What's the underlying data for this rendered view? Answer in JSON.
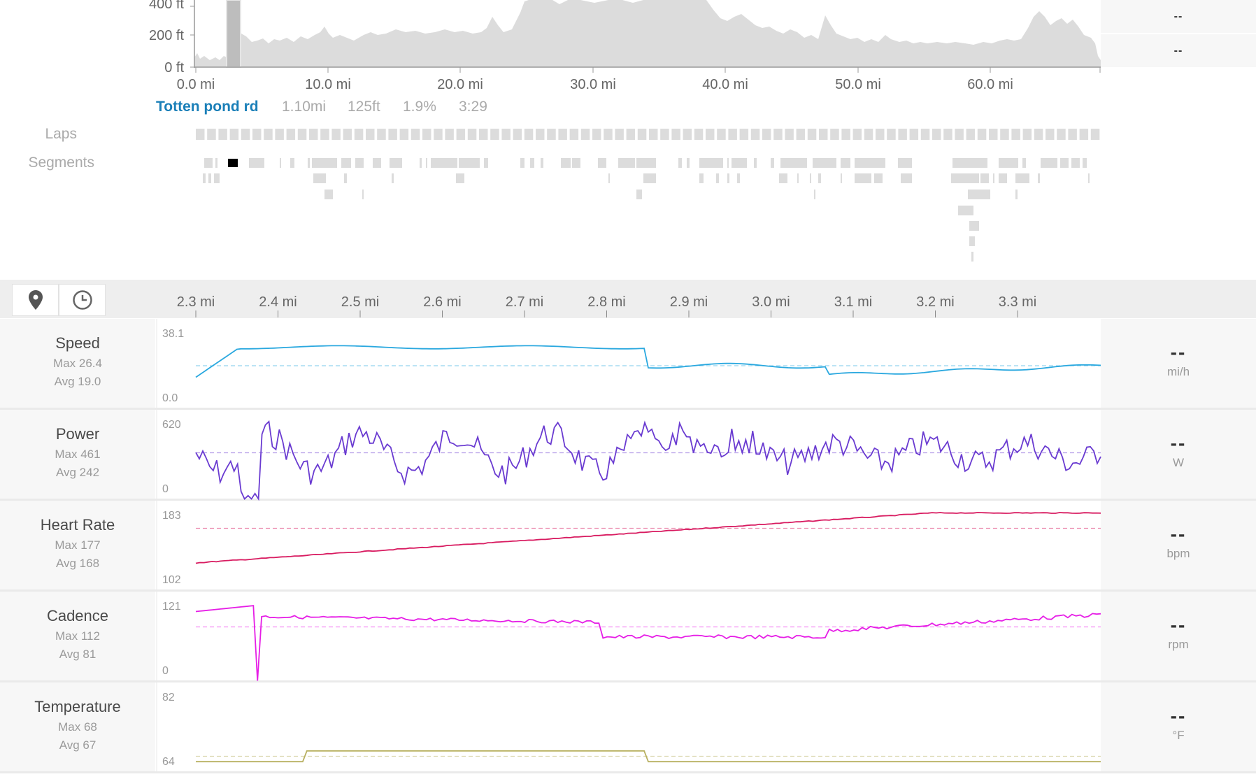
{
  "elevation": {
    "y_ticks": [
      "400 ft",
      "200 ft",
      "0 ft"
    ],
    "x_ticks": [
      "0.0 mi",
      "10.0 mi",
      "20.0 mi",
      "30.0 mi",
      "40.0 mi",
      "50.0 mi",
      "60.0 mi"
    ],
    "right_values": [
      "--",
      "--"
    ]
  },
  "segment": {
    "name": "Totten pond rd",
    "distance": "1.10mi",
    "elevation": "125ft",
    "grade": "1.9%",
    "time": "3:29"
  },
  "labels": {
    "laps": "Laps",
    "segments": "Segments"
  },
  "toolbar": {
    "icons": [
      "map-pin-icon",
      "clock-icon"
    ]
  },
  "zoom_axis": {
    "ticks": [
      "2.3 mi",
      "2.4 mi",
      "2.5 mi",
      "2.6 mi",
      "2.7 mi",
      "2.8 mi",
      "2.9 mi",
      "3.0 mi",
      "3.1 mi",
      "3.2 mi",
      "3.3 mi"
    ]
  },
  "streams": [
    {
      "name": "Speed",
      "max": "Max 26.4",
      "avg": "Avg 19.0",
      "ymax": "38.1",
      "ymin": "0.0",
      "current": "--",
      "unit": "mi/h",
      "color": "#2aa8df"
    },
    {
      "name": "Power",
      "max": "Max 461",
      "avg": "Avg 242",
      "ymax": "620",
      "ymin": "0",
      "current": "--",
      "unit": "W",
      "color": "#6a3bd1"
    },
    {
      "name": "Heart Rate",
      "max": "Max 177",
      "avg": "Avg 168",
      "ymax": "183",
      "ymin": "102",
      "current": "--",
      "unit": "bpm",
      "color": "#d81b60"
    },
    {
      "name": "Cadence",
      "max": "Max 112",
      "avg": "Avg 81",
      "ymax": "121",
      "ymin": "0",
      "current": "--",
      "unit": "rpm",
      "color": "#e61ee6"
    },
    {
      "name": "Temperature",
      "max": "Max 68",
      "avg": "Avg 67",
      "ymax": "82",
      "ymin": "64",
      "current": "--",
      "unit": "°F",
      "color": "#b8b060"
    }
  ]
}
